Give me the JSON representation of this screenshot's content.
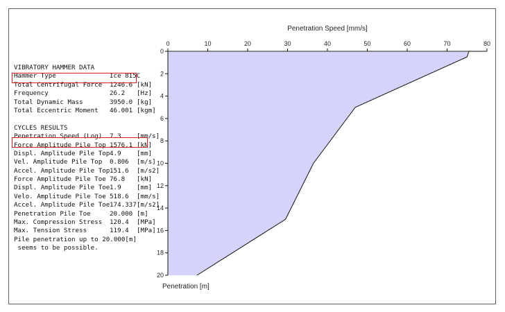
{
  "hammer": {
    "section_title": "VIBRATORY HAMMER DATA",
    "rows": [
      {
        "label": "Hammer Type",
        "value": "Ice 815C",
        "unit": ""
      },
      {
        "label": "Total Centrifugal Force",
        "value": "1246.6",
        "unit": "[kN]"
      },
      {
        "label": "Frequency",
        "value": "26.2",
        "unit": "[Hz]"
      },
      {
        "label": "Total Dynamic Mass",
        "value": "3950.0",
        "unit": "[kg]"
      },
      {
        "label": "Total Eccentric Moment",
        "value": "46.001",
        "unit": "[kgm]"
      }
    ]
  },
  "cycles": {
    "section_title": "CYCLES RESULTS",
    "rows": [
      {
        "label": "Penetration Speed (Log)",
        "value": "7.3",
        "unit": "[mm/s]"
      },
      {
        "label": "Force Amplitude Pile Top",
        "value": "1576.1",
        "unit": "[kN]"
      },
      {
        "label": "Displ. Amplitude Pile Top",
        "value": "4.9",
        "unit": "[mm]"
      },
      {
        "label": "Vel. Amplitude Pile Top",
        "value": "0.806",
        "unit": "[m/s]"
      },
      {
        "label": "Accel. Amplitude Pile Top",
        "value": "151.6",
        "unit": "[m/s2]"
      },
      {
        "label": "Force Amplitude Pile Toe",
        "value": "76.8",
        "unit": "[kN]"
      },
      {
        "label": "Displ. Amplitude Pile Toe",
        "value": "1.9",
        "unit": "[mm]"
      },
      {
        "label": "Velo. Amplitude Pile Toe",
        "value": "518.6",
        "unit": "[mm/s]"
      },
      {
        "label": "Accel. Amplitude Pile Toe",
        "value": "174.337",
        "unit": "[m/s2]"
      },
      {
        "label": "Penetration Pile Toe",
        "value": "20.000",
        "unit": "[m]"
      },
      {
        "label": "Max. Compression Stress",
        "value": "120.4",
        "unit": "[MPa]"
      },
      {
        "label": "Max. Tension Stress",
        "value": "119.4",
        "unit": "[MPa]"
      }
    ],
    "note_line1": "Pile penetration up to 20.000[m]",
    "note_line2": " seems to be possible."
  },
  "colors": {
    "highlight": "#d81b1b",
    "fill_line": "#8c8cf0",
    "curve": "#111111"
  },
  "chart_data": {
    "type": "area",
    "xlabel": "Penetration Speed [mm/s]",
    "ylabel": "Penetration [m]",
    "xlim": [
      0,
      80
    ],
    "ylim": [
      0,
      20
    ],
    "y_inverted": true,
    "x_ticks": [
      0,
      10,
      20,
      30,
      40,
      50,
      60,
      70,
      80
    ],
    "y_ticks": [
      0,
      2,
      4,
      6,
      8,
      10,
      12,
      14,
      16,
      18,
      20
    ],
    "series": [
      {
        "depth": [
          0,
          0.5,
          5.0,
          10.0,
          15.0,
          20.0
        ],
        "speed": [
          75.5,
          75.0,
          47.0,
          36.5,
          29.5,
          7.3
        ]
      }
    ]
  }
}
